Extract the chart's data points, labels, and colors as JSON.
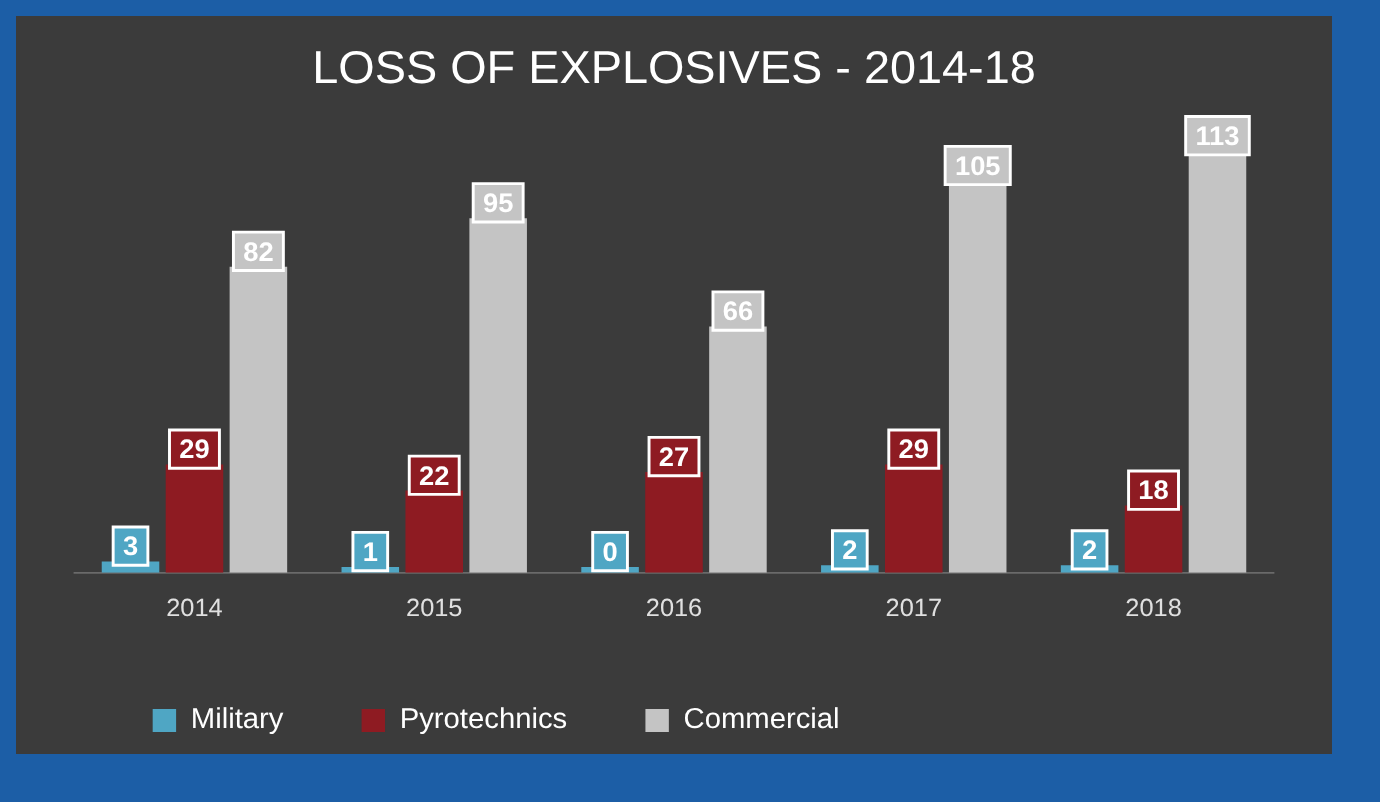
{
  "chart_data": {
    "type": "bar",
    "title": "LOSS OF EXPLOSIVES - 2014-18",
    "categories": [
      "2014",
      "2015",
      "2016",
      "2017",
      "2018"
    ],
    "series": [
      {
        "name": "Military",
        "color": "#4fa6c4",
        "values": [
          3,
          1,
          0,
          2,
          2
        ]
      },
      {
        "name": "Pyrotechnics",
        "color": "#8e1b22",
        "values": [
          29,
          22,
          27,
          29,
          18
        ]
      },
      {
        "name": "Commercial",
        "color": "#c4c4c4",
        "values": [
          82,
          95,
          66,
          105,
          113
        ]
      }
    ],
    "data_labels": true,
    "legend": "bottom",
    "grid": false,
    "tick_labels": "x"
  }
}
